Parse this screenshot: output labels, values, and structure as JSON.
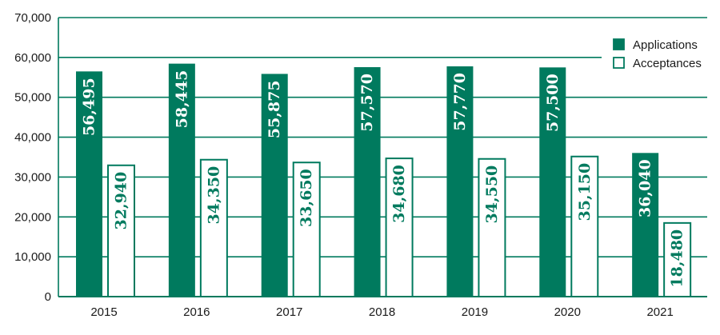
{
  "chart_data": {
    "type": "bar",
    "categories": [
      "2015",
      "2016",
      "2017",
      "2018",
      "2019",
      "2020",
      "2021"
    ],
    "series": [
      {
        "name": "Applications",
        "values": [
          56495,
          58445,
          55875,
          57570,
          57770,
          57500,
          36040
        ],
        "labels": [
          "56,495",
          "58,445",
          "55,875",
          "57,570",
          "57,770",
          "57,500",
          "36,040"
        ]
      },
      {
        "name": "Acceptances",
        "values": [
          32940,
          34350,
          33650,
          34680,
          34550,
          35150,
          18480
        ],
        "labels": [
          "32,940",
          "34,350",
          "33,650",
          "34,680",
          "34,550",
          "35,150",
          "18,480"
        ]
      }
    ],
    "yticks": [
      "0",
      "10,000",
      "20,000",
      "30,000",
      "40,000",
      "50,000",
      "60,000",
      "70,000"
    ],
    "ylim": [
      0,
      70000
    ],
    "grid": true,
    "legend_position": "top-right",
    "colors": {
      "primary": "#007a5e",
      "grid": "#007a5e",
      "fill_light": "#ffffff"
    }
  }
}
